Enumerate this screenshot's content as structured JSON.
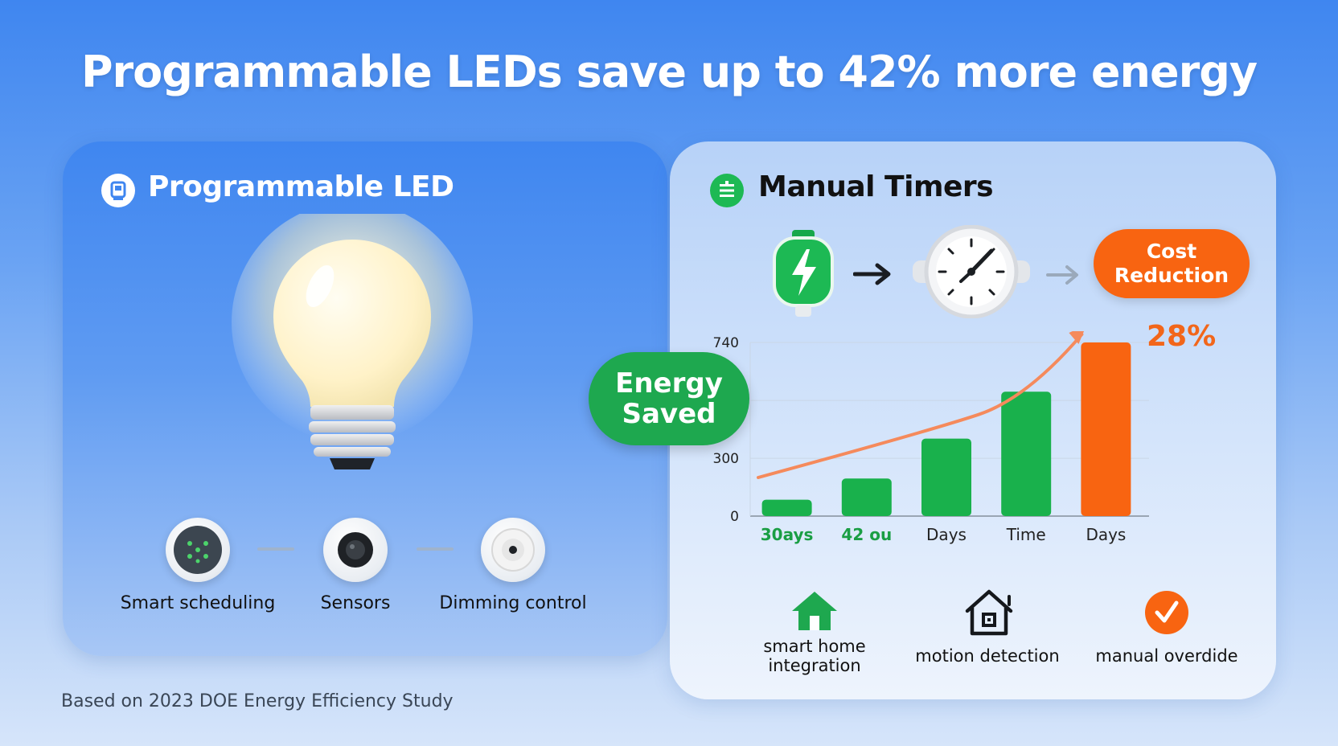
{
  "headline": "Programmable LEDs save up to 42% more energy",
  "left_panel": {
    "title": "Programmable LED",
    "features": [
      {
        "label": "Smart scheduling"
      },
      {
        "label": "Sensors"
      },
      {
        "label": "Dimming control"
      }
    ]
  },
  "right_panel": {
    "title": "Manual Timers",
    "flow": {
      "cost_badge_line1": "Cost",
      "cost_badge_line2": "Reduction"
    },
    "energy_badge_line1": "Energy",
    "energy_badge_line2": "Saved",
    "percent_label": "28%",
    "bottom_features": [
      {
        "line1": "smart home",
        "line2": "integration"
      },
      {
        "line1": "motion detection",
        "line2": ""
      },
      {
        "line1": "manual overdide",
        "line2": ""
      }
    ]
  },
  "chart_data": {
    "type": "bar",
    "categories": [
      "30ays",
      "42 ou",
      "Days",
      "Time",
      "Days"
    ],
    "values": [
      70,
      160,
      330,
      530,
      740
    ],
    "y_tick_labels": [
      "0",
      "300",
      "300",
      "740"
    ],
    "ylim": [
      0,
      740
    ],
    "bar_colors": [
      "#19b14c",
      "#19b14c",
      "#19b14c",
      "#19b14c",
      "#f86411"
    ],
    "label_colors": [
      "#1a9e44",
      "#1a9e44",
      "#222222",
      "#222222",
      "#222222"
    ],
    "trend_color": "#f58a5c",
    "grid": true
  },
  "source": "Based on 2023 DOE Energy Efficiency Study",
  "colors": {
    "green": "#1ea84f",
    "orange": "#f86411",
    "blue": "#3f86f0"
  }
}
